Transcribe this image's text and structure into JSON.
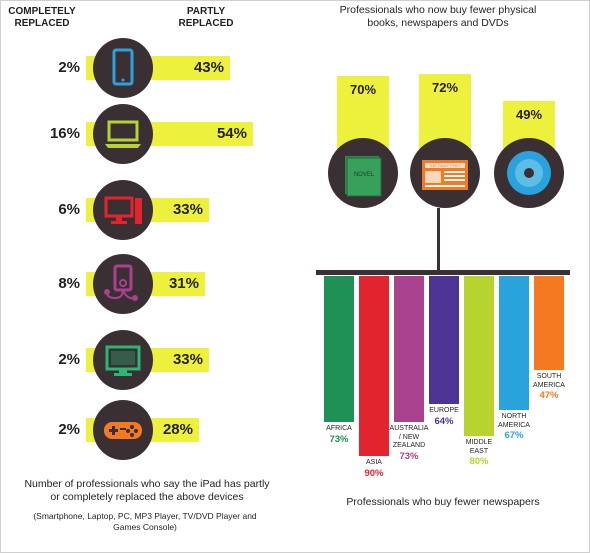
{
  "left": {
    "header_completely": "COMPLETELY\nREPLACED",
    "header_partly": "PARTLY\nREPLACED",
    "rows": [
      {
        "device_icon": "smartphone-icon",
        "completely": "2%",
        "partly": "43%",
        "color": "#2aa3dd"
      },
      {
        "device_icon": "laptop-icon",
        "completely": "16%",
        "partly": "54%",
        "color": "#b6d32f"
      },
      {
        "device_icon": "pc-icon",
        "completely": "6%",
        "partly": "33%",
        "color": "#e2242e"
      },
      {
        "device_icon": "mp3-player-icon",
        "completely": "8%",
        "partly": "31%",
        "color": "#a9418f"
      },
      {
        "device_icon": "tv-icon",
        "completely": "2%",
        "partly": "33%",
        "color": "#2bb673"
      },
      {
        "device_icon": "game-controller-icon",
        "completely": "2%",
        "partly": "28%",
        "color": "#f47920"
      }
    ],
    "caption": "Number of professionals who say the iPad has partly or completely replaced the above devices",
    "subcaption": "(Smartphone, Laptop, PC, MP3 Player, TV/DVD Player and Games Console)"
  },
  "right": {
    "title": "Professionals who now buy fewer physical books, newspapers and DVDs",
    "media": [
      {
        "icon": "book-icon",
        "pct": "70%",
        "text": "NOVEL"
      },
      {
        "icon": "newspaper-icon",
        "pct": "72%",
        "text": "THE DAILY POST"
      },
      {
        "icon": "dvd-icon",
        "pct": "49%"
      }
    ],
    "regions_caption": "Professionals who buy fewer newspapers"
  },
  "chart_data": [
    {
      "type": "bar",
      "categories": [
        "Smartphone",
        "Laptop",
        "PC",
        "MP3 Player",
        "TV/DVD Player",
        "Games Console"
      ],
      "series": [
        {
          "name": "COMPLETELY REPLACED",
          "values": [
            2,
            16,
            6,
            8,
            2,
            2
          ]
        },
        {
          "name": "PARTLY REPLACED",
          "values": [
            43,
            54,
            33,
            31,
            33,
            28
          ]
        }
      ],
      "title": "Number of professionals who say the iPad has partly or completely replaced the above devices",
      "ylim": [
        0,
        100
      ]
    },
    {
      "type": "bar",
      "categories": [
        "Books",
        "Newspapers",
        "DVDs"
      ],
      "values": [
        70,
        72,
        49
      ],
      "title": "Professionals who now buy fewer physical books, newspapers and DVDs",
      "ylim": [
        0,
        100
      ]
    },
    {
      "type": "bar",
      "categories": [
        "AFRICA",
        "ASIA",
        "AUSTRALIA / NEW ZEALAND",
        "EUROPE",
        "MIDDLE EAST",
        "NORTH AMERICA",
        "SOUTH AMERICA"
      ],
      "values": [
        73,
        90,
        73,
        64,
        80,
        67,
        47
      ],
      "colors": [
        "#1f9156",
        "#e2242e",
        "#a9418f",
        "#4d3393",
        "#b6d32f",
        "#2aa3dd",
        "#f47920"
      ],
      "title": "Professionals who buy fewer newspapers",
      "ylim": [
        0,
        100
      ]
    }
  ]
}
